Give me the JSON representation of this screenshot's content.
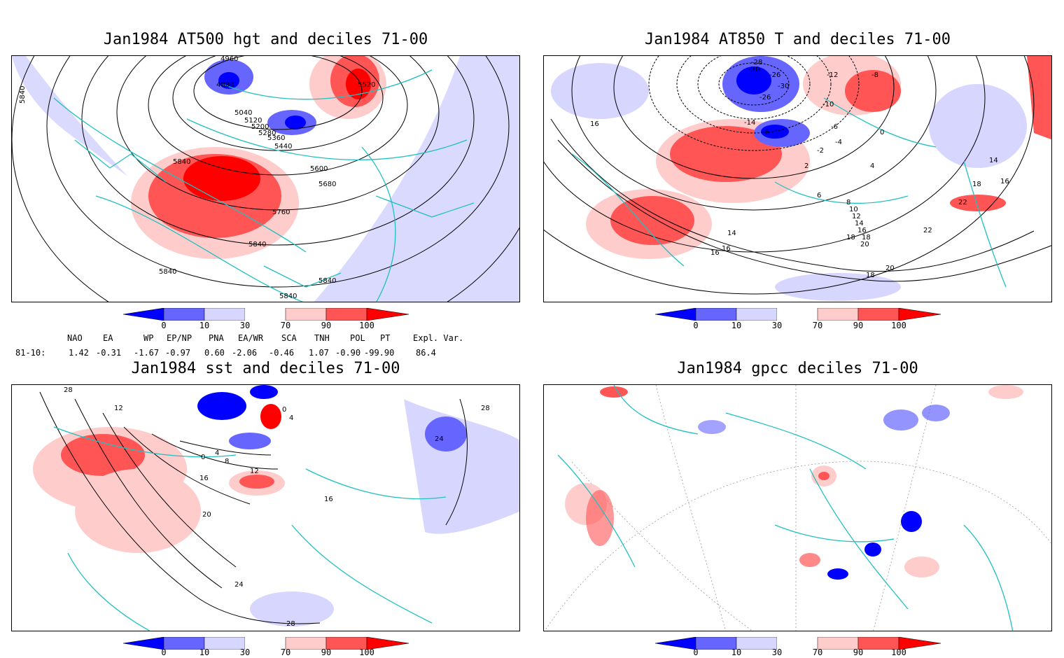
{
  "panels": [
    {
      "title": "Jan1984 AT500 hgt and deciles 71-00",
      "contour_labels": [
        "4960",
        "4880",
        "5040",
        "5120",
        "5200",
        "5280",
        "5360",
        "5440",
        "5520",
        "5600",
        "5680",
        "5760",
        "5840",
        "5840",
        "5840",
        "5840",
        "5840",
        "5840"
      ]
    },
    {
      "title": "Jan1984 AT850 T and deciles 71-00",
      "contour_labels": [
        "-28",
        "-30",
        "-26",
        "-30",
        "-26",
        "-12",
        "-8",
        "-10",
        "-14",
        "-8",
        "-6",
        "-4",
        "-2",
        "0",
        "2",
        "4",
        "6",
        "8",
        "10",
        "12",
        "14",
        "16",
        "18",
        "20",
        "14",
        "16",
        "16",
        "16",
        "18",
        "22",
        "22",
        "18",
        "20",
        "18",
        "14",
        "16"
      ]
    },
    {
      "title": "Jan1984 sst and deciles 71-00",
      "contour_labels": [
        "28",
        "12",
        "0",
        "4",
        "0",
        "4",
        "8",
        "12",
        "16",
        "20",
        "24",
        "28",
        "16",
        "24",
        "28"
      ]
    },
    {
      "title": "Jan1984 gpcc deciles 71-00",
      "contour_labels": []
    }
  ],
  "colorbar": {
    "labels": [
      "0",
      "10",
      "30",
      "70",
      "90",
      "100"
    ],
    "colors": [
      "#0000ff",
      "#6666ff",
      "#d6d6ff",
      "#ffffff",
      "#ffcccc",
      "#ff5555",
      "#ff0000"
    ]
  },
  "indices": {
    "row_label": "81-10:",
    "names": [
      "NAO",
      "EA",
      "WP",
      "EP/NP",
      "PNA",
      "EA/WR",
      "SCA",
      "TNH",
      "POL",
      "PT",
      "Expl. Var."
    ],
    "values": [
      "1.42",
      "-0.31",
      "-1.67",
      "-0.97",
      "0.60",
      "-2.06",
      "-0.46",
      "1.07",
      "-0.90",
      "-99.90",
      "86.4"
    ]
  }
}
